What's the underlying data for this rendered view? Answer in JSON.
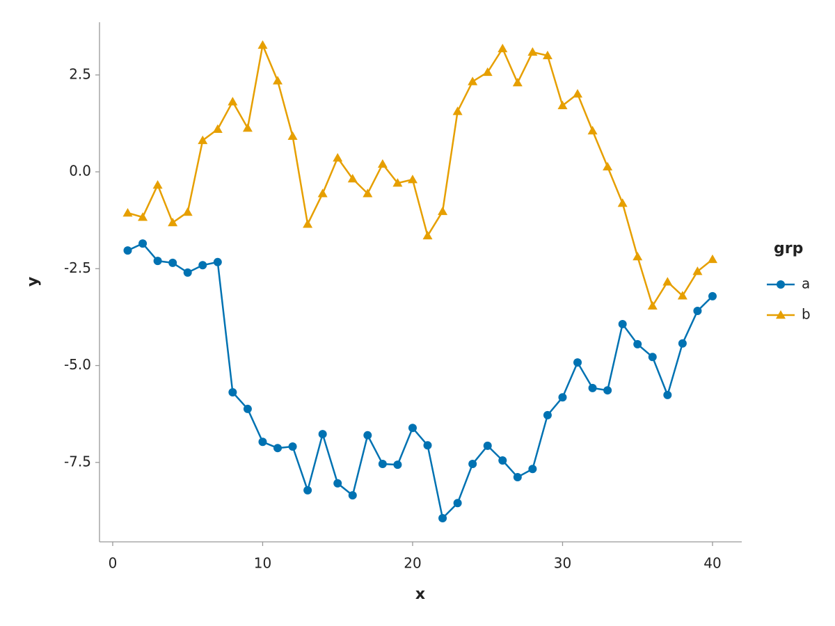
{
  "chart_data": {
    "type": "line",
    "x_label": "x",
    "y_label": "y",
    "legend_title": "grp",
    "legend_position": "right",
    "x": [
      1,
      2,
      3,
      4,
      5,
      6,
      7,
      8,
      9,
      10,
      11,
      12,
      13,
      14,
      15,
      16,
      17,
      18,
      19,
      20,
      21,
      22,
      23,
      24,
      25,
      26,
      27,
      28,
      29,
      30,
      31,
      32,
      33,
      34,
      35,
      36,
      37,
      38,
      39,
      40
    ],
    "series": [
      {
        "name": "a",
        "color": "#0072b2",
        "marker": "circle",
        "values": [
          -2.03,
          -1.85,
          -2.3,
          -2.35,
          -2.6,
          -2.41,
          -2.33,
          -5.69,
          -6.12,
          -6.97,
          -7.13,
          -7.09,
          -8.22,
          -6.77,
          -8.04,
          -8.35,
          -6.8,
          -7.54,
          -7.56,
          -6.61,
          -7.06,
          -8.94,
          -8.55,
          -7.54,
          -7.07,
          -7.45,
          -7.88,
          -7.67,
          -6.28,
          -5.82,
          -4.92,
          -5.58,
          -5.64,
          -3.93,
          -4.45,
          -4.78,
          -5.76,
          -4.43,
          -3.59,
          -3.21
        ]
      },
      {
        "name": "b",
        "color": "#e69f00",
        "marker": "triangle",
        "values": [
          -1.06,
          -1.17,
          -0.34,
          -1.31,
          -1.04,
          0.81,
          1.1,
          1.81,
          1.13,
          3.27,
          2.35,
          0.92,
          -1.35,
          -0.56,
          0.36,
          -0.18,
          -0.56,
          0.2,
          -0.29,
          -0.2,
          -1.65,
          -1.02,
          1.56,
          2.33,
          2.57,
          3.18,
          2.3,
          3.09,
          3.0,
          1.71,
          2.01,
          1.06,
          0.13,
          -0.81,
          -2.19,
          -3.46,
          -2.84,
          -3.2,
          -2.57,
          -2.26
        ]
      }
    ],
    "xlim": [
      -0.88,
      41.95
    ],
    "xticks": [
      0,
      10,
      20,
      30,
      40
    ],
    "ylim": [
      -9.55,
      3.86
    ],
    "yticks": [
      -7.5,
      {
        "value": -5,
        "label": "-5.0"
      },
      -2.5,
      {
        "value": 0,
        "label": "0.0"
      },
      2.5
    ],
    "grid": false
  }
}
